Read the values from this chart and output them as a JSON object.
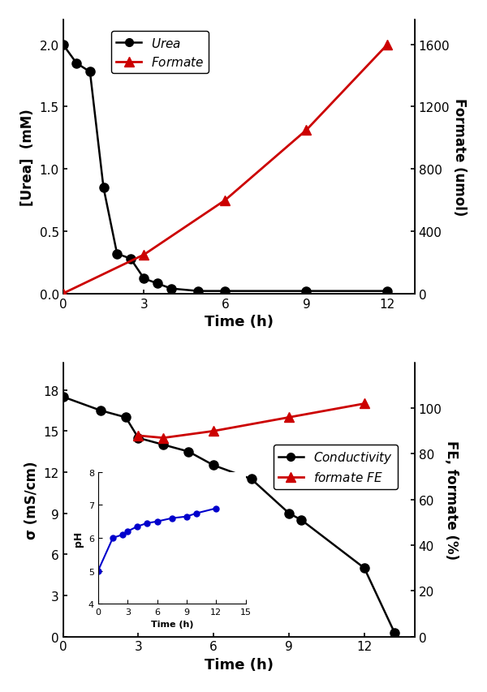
{
  "top": {
    "urea_time": [
      0,
      0.5,
      1.0,
      1.5,
      2.0,
      2.5,
      3.0,
      3.5,
      4.0,
      5.0,
      6.0,
      9.0,
      12.0
    ],
    "urea_conc": [
      2.0,
      1.85,
      1.78,
      0.85,
      0.32,
      0.28,
      0.12,
      0.08,
      0.04,
      0.02,
      0.02,
      0.02,
      0.02
    ],
    "formate_time": [
      0,
      3,
      6,
      9,
      12
    ],
    "formate_umol": [
      0,
      250,
      600,
      1050,
      1600
    ],
    "xlim": [
      0,
      13
    ],
    "xticks": [
      0,
      3,
      6,
      9,
      12
    ],
    "ylim_left": [
      0,
      2.2
    ],
    "yticks_left": [
      0.0,
      0.5,
      1.0,
      1.5,
      2.0
    ],
    "ylim_right": [
      0,
      1760
    ],
    "yticks_right": [
      0,
      400,
      800,
      1200,
      1600
    ],
    "xlabel": "Time (h)",
    "ylabel_left": "[Urea]  (mM)",
    "ylabel_right": "Formate (umol)",
    "legend_urea": "Urea",
    "legend_formate": "Formate",
    "urea_color": "#000000",
    "formate_color": "#cc0000"
  },
  "bottom": {
    "cond_time": [
      0,
      1.5,
      2.5,
      3.0,
      4.0,
      5.0,
      6.0,
      7.5,
      9.0,
      9.5,
      12.0,
      13.2
    ],
    "cond_vals": [
      17.5,
      16.5,
      16.0,
      14.5,
      14.0,
      13.5,
      12.5,
      11.5,
      9.0,
      8.5,
      5.0,
      0.3
    ],
    "fe_time": [
      3.0,
      4.0,
      6.0,
      9.0,
      12.0
    ],
    "fe_vals": [
      88,
      87,
      90,
      96,
      102
    ],
    "xlim": [
      0,
      14
    ],
    "xticks": [
      0,
      3,
      6,
      9,
      12
    ],
    "ylim_left": [
      0,
      20
    ],
    "yticks_left": [
      0,
      3,
      6,
      9,
      12,
      15,
      18
    ],
    "ylim_right": [
      0,
      120
    ],
    "yticks_right": [
      0,
      20,
      40,
      60,
      80,
      100
    ],
    "xlabel": "Time (h)",
    "ylabel_left": "σ (mS/cm)",
    "ylabel_right": "FE, formate (%)",
    "legend_cond": "Conductivity",
    "legend_fe": "formate FE",
    "cond_color": "#000000",
    "fe_color": "#cc0000",
    "inset": {
      "ph_time": [
        0,
        1.5,
        2.5,
        3.0,
        4.0,
        5.0,
        6.0,
        7.5,
        9.0,
        10.0,
        12.0
      ],
      "ph_vals": [
        5.0,
        6.0,
        6.1,
        6.2,
        6.35,
        6.45,
        6.5,
        6.6,
        6.65,
        6.75,
        6.9
      ],
      "xlim": [
        0,
        15
      ],
      "xticks": [
        0,
        3,
        6,
        9,
        12,
        15
      ],
      "ylim": [
        4,
        8
      ],
      "yticks": [
        4,
        5,
        6,
        7,
        8
      ],
      "xlabel": "Time (h)",
      "ylabel": "pH",
      "color": "#0000cc"
    }
  },
  "fig_width": 6.0,
  "fig_height": 8.54,
  "dpi": 100
}
